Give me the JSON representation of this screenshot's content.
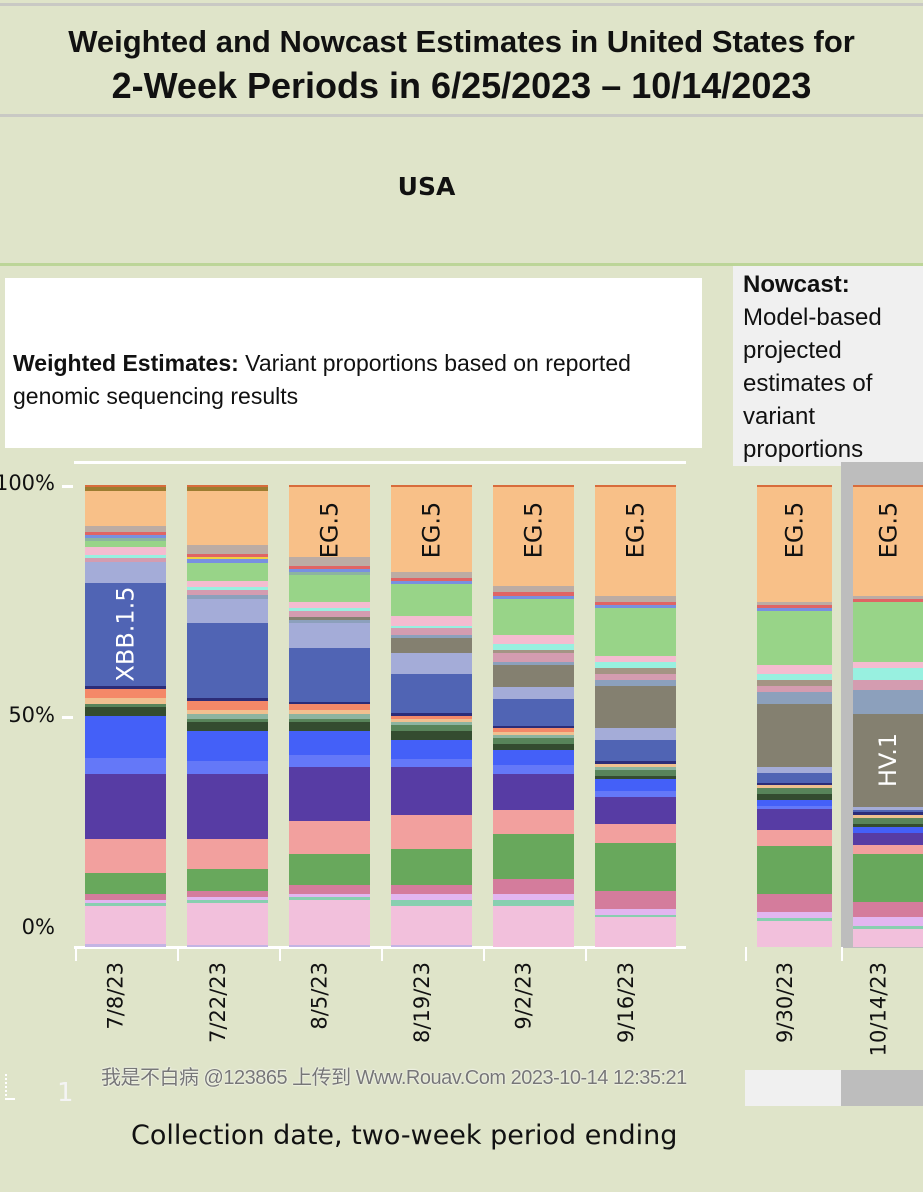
{
  "header": {
    "title_line1": "Weighted and Nowcast Estimates in United States for",
    "title_line2": "2-Week Periods in 6/25/2023 – 10/14/2023",
    "region": "USA"
  },
  "weighted_box": {
    "bold": "Weighted Estimates:",
    "text1": " Variant proportions based on reported",
    "text2": "genomic sequencing results"
  },
  "nowcast_box": {
    "bold": "Nowcast:",
    "lines": [
      "Model-based",
      "projected",
      "estimates of",
      "variant",
      "proportions"
    ]
  },
  "footer": {
    "watermark": "我是不白病 @123865 上传到 Www.Rouav.Com 2023-10-14 12:35:21",
    "page_number": "1"
  },
  "chart_data": {
    "type": "bar",
    "stacked": true,
    "xlabel": "Collection date, two-week period ending",
    "ylabel": "",
    "ylim": [
      0,
      100
    ],
    "yticks": [
      "100%",
      "50%",
      "0%"
    ],
    "categories": [
      "7/8/23",
      "7/22/23",
      "8/5/23",
      "8/19/23",
      "9/2/23",
      "9/16/23",
      "9/30/23",
      "10/14/23"
    ],
    "groups": {
      "weighted": [
        0,
        1,
        2,
        3,
        4,
        5
      ],
      "nowcast": [
        6,
        7
      ]
    },
    "colors": {
      "lavender": "#c4b4e4",
      "pink": "#f2c0dc",
      "teal": "#88cfb0",
      "lilac": "#e2b6f0",
      "mauve": "#d47c9c",
      "green": "#68a85c",
      "salmon": "#f2a09e",
      "purple": "#573ca4",
      "lightblue": "#6478f8",
      "blue": "#4460f8",
      "darkgreen": "#344c30",
      "greenmid": "#58845a",
      "tealgray": "#8cb4a0",
      "tan": "#f0c090",
      "orange2": "#f48868",
      "navy": "#2c2c78",
      "xbb": "#5064b4",
      "periwinkle": "#a4acd8",
      "graybl": "#8ca0bc",
      "gray": "#848070",
      "mauve2": "#d49cb0",
      "graybrown": "#a49484",
      "teal2": "#98f0e0",
      "pink2": "#f4bcd0",
      "lightgreen": "#98d488",
      "blue2": "#7890e0",
      "yellow": "#f0d040",
      "red": "#e06464",
      "tan2": "#bcaca4",
      "eg5": "#f8c088",
      "olive": "#9c7c30",
      "redorange": "#d86c3c"
    },
    "bars": [
      {
        "segments": [
          [
            "lavender",
            0.7
          ],
          [
            "pink",
            8.2
          ],
          [
            "teal",
            0.7
          ],
          [
            "lilac",
            0.7
          ],
          [
            "mauve",
            1.3
          ],
          [
            "green",
            4.6
          ],
          [
            "salmon",
            7.2
          ],
          [
            "purple",
            14.2
          ],
          [
            "lightblue",
            3.3
          ],
          [
            "blue",
            9.2
          ],
          [
            "darkgreen",
            2.0
          ],
          [
            "greenmid",
            0.6
          ],
          [
            "tan",
            1.2
          ],
          [
            "orange2",
            2.0
          ],
          [
            "navy",
            0.6
          ],
          [
            "xbb",
            22.3,
            "XBB.1.5"
          ],
          [
            "periwinkle",
            4.6
          ],
          [
            "mauve2",
            0.8
          ],
          [
            "teal2",
            0.7
          ],
          [
            "pink2",
            1.6
          ],
          [
            "lightgreen",
            1.4
          ],
          [
            "tealgray",
            0.7
          ],
          [
            "blue2",
            0.5
          ],
          [
            "red",
            0.7
          ],
          [
            "tan2",
            1.3
          ],
          [
            "eg5",
            7.7
          ],
          [
            "olive",
            0.7
          ],
          [
            "redorange",
            0.4
          ]
        ]
      },
      {
        "segments": [
          [
            "lavender",
            0.6
          ],
          [
            "pink",
            9.0
          ],
          [
            "teal",
            0.7
          ],
          [
            "lilac",
            0.7
          ],
          [
            "mauve",
            1.3
          ],
          [
            "green",
            4.6
          ],
          [
            "salmon",
            6.5
          ],
          [
            "purple",
            14.2
          ],
          [
            "lightblue",
            2.7
          ],
          [
            "blue",
            6.5
          ],
          [
            "darkgreen",
            2.0
          ],
          [
            "greenmid",
            0.7
          ],
          [
            "tealgray",
            1.1
          ],
          [
            "tan",
            0.7
          ],
          [
            "orange2",
            2.0
          ],
          [
            "navy",
            0.6
          ],
          [
            "xbb",
            16.3
          ],
          [
            "periwinkle",
            5.3
          ],
          [
            "graybl",
            0.7
          ],
          [
            "mauve2",
            1.2
          ],
          [
            "teal2",
            0.7
          ],
          [
            "pink2",
            1.2
          ],
          [
            "lightgreen",
            4.0
          ],
          [
            "blue2",
            0.7
          ],
          [
            "yellow",
            0.6
          ],
          [
            "red",
            0.6
          ],
          [
            "tan2",
            2.0
          ],
          [
            "eg5",
            11.7
          ],
          [
            "olive",
            0.7
          ],
          [
            "redorange",
            0.4
          ]
        ]
      },
      {
        "segments": [
          [
            "lavender",
            0.6
          ],
          [
            "pink",
            9.7
          ],
          [
            "teal",
            0.7
          ],
          [
            "lilac",
            0.6
          ],
          [
            "mauve",
            2.0
          ],
          [
            "green",
            6.5
          ],
          [
            "salmon",
            7.2
          ],
          [
            "purple",
            11.7
          ],
          [
            "lightblue",
            2.5
          ],
          [
            "blue",
            5.2
          ],
          [
            "darkgreen",
            2.0
          ],
          [
            "greenmid",
            0.7
          ],
          [
            "tealgray",
            1.1
          ],
          [
            "tan",
            0.7
          ],
          [
            "orange2",
            1.3
          ],
          [
            "navy",
            0.6
          ],
          [
            "xbb",
            11.7
          ],
          [
            "periwinkle",
            5.2
          ],
          [
            "graybl",
            0.7
          ],
          [
            "gray",
            0.7
          ],
          [
            "mauve2",
            1.3
          ],
          [
            "teal2",
            0.7
          ],
          [
            "pink2",
            1.2
          ],
          [
            "lightgreen",
            5.9
          ],
          [
            "tealgray",
            0.7
          ],
          [
            "blue2",
            0.6
          ],
          [
            "red",
            0.6
          ],
          [
            "tan2",
            2.0
          ],
          [
            "eg5",
            15.0,
            "EG.5"
          ],
          [
            "redorange",
            0.4
          ]
        ]
      },
      {
        "segments": [
          [
            "lavender",
            0.6
          ],
          [
            "pink",
            8.3
          ],
          [
            "teal",
            1.4
          ],
          [
            "lilac",
            1.3
          ],
          [
            "mauve",
            2.0
          ],
          [
            "green",
            7.8
          ],
          [
            "salmon",
            7.2
          ],
          [
            "purple",
            10.4
          ],
          [
            "lightblue",
            1.8
          ],
          [
            "blue",
            4.0
          ],
          [
            "darkgreen",
            2.0
          ],
          [
            "greenmid",
            1.3
          ],
          [
            "tealgray",
            0.7
          ],
          [
            "tan",
            0.6
          ],
          [
            "orange2",
            0.6
          ],
          [
            "navy",
            0.6
          ],
          [
            "xbb",
            8.5
          ],
          [
            "periwinkle",
            4.6
          ],
          [
            "gray",
            3.3
          ],
          [
            "graybl",
            0.6
          ],
          [
            "mauve2",
            1.4
          ],
          [
            "teal2",
            0.6
          ],
          [
            "pink2",
            2.0
          ],
          [
            "lightgreen",
            7.1
          ],
          [
            "blue2",
            0.6
          ],
          [
            "red",
            0.6
          ],
          [
            "tan2",
            1.3
          ],
          [
            "eg5",
            18.3,
            "EG.5"
          ],
          [
            "redorange",
            0.4
          ]
        ]
      },
      {
        "segments": [
          [
            "pink",
            9.0
          ],
          [
            "teal",
            1.2
          ],
          [
            "lilac",
            1.3
          ],
          [
            "mauve",
            3.3
          ],
          [
            "green",
            9.8
          ],
          [
            "salmon",
            5.2
          ],
          [
            "purple",
            7.9
          ],
          [
            "lightblue",
            1.9
          ],
          [
            "blue",
            3.3
          ],
          [
            "darkgreen",
            1.2
          ],
          [
            "greenmid",
            1.3
          ],
          [
            "tealgray",
            0.7
          ],
          [
            "tan",
            0.7
          ],
          [
            "orange2",
            0.7
          ],
          [
            "navy",
            0.6
          ],
          [
            "xbb",
            5.9
          ],
          [
            "periwinkle",
            2.6
          ],
          [
            "gray",
            4.6
          ],
          [
            "graybl",
            0.7
          ],
          [
            "mauve2",
            2.0
          ],
          [
            "graybrown",
            0.6
          ],
          [
            "teal2",
            1.3
          ],
          [
            "pink2",
            2.0
          ],
          [
            "lightgreen",
            7.8
          ],
          [
            "blue2",
            0.7
          ],
          [
            "red",
            0.7
          ],
          [
            "tan2",
            1.3
          ],
          [
            "eg5",
            21.5,
            "EG.5"
          ],
          [
            "redorange",
            0.4
          ]
        ]
      },
      {
        "segments": [
          [
            "pink",
            6.5
          ],
          [
            "teal",
            0.6
          ],
          [
            "lilac",
            1.3
          ],
          [
            "mauve",
            3.9
          ],
          [
            "green",
            10.4
          ],
          [
            "salmon",
            3.9
          ],
          [
            "purple",
            5.9
          ],
          [
            "lightblue",
            1.3
          ],
          [
            "blue",
            2.7
          ],
          [
            "darkgreen",
            0.6
          ],
          [
            "greenmid",
            1.3
          ],
          [
            "tealgray",
            0.7
          ],
          [
            "tan",
            0.6
          ],
          [
            "navy",
            0.6
          ],
          [
            "xbb",
            4.6
          ],
          [
            "periwinkle",
            2.6
          ],
          [
            "gray",
            9.1
          ],
          [
            "graybl",
            1.3
          ],
          [
            "mauve2",
            1.3
          ],
          [
            "graybrown",
            1.3
          ],
          [
            "teal2",
            1.3
          ],
          [
            "pink2",
            1.3
          ],
          [
            "lightgreen",
            10.4
          ],
          [
            "blue2",
            0.6
          ],
          [
            "red",
            0.6
          ],
          [
            "tan2",
            1.3
          ],
          [
            "eg5",
            23.5,
            "EG.5"
          ],
          [
            "redorange",
            0.4
          ]
        ]
      },
      {
        "segments": [
          [
            "pink",
            5.8
          ],
          [
            "teal",
            0.6
          ],
          [
            "lilac",
            1.3
          ],
          [
            "mauve",
            3.9
          ],
          [
            "green",
            10.4
          ],
          [
            "salmon",
            3.3
          ],
          [
            "purple",
            4.6
          ],
          [
            "lightblue",
            0.6
          ],
          [
            "blue",
            1.3
          ],
          [
            "darkgreen",
            1.3
          ],
          [
            "greenmid",
            1.3
          ],
          [
            "tan",
            0.6
          ],
          [
            "navy",
            0.6
          ],
          [
            "xbb",
            2.0
          ],
          [
            "periwinkle",
            1.3
          ],
          [
            "gray",
            13.6
          ],
          [
            "graybl",
            2.6
          ],
          [
            "mauve2",
            1.3
          ],
          [
            "graybrown",
            1.3
          ],
          [
            "teal2",
            1.3
          ],
          [
            "pink2",
            2.0
          ],
          [
            "lightgreen",
            11.7
          ],
          [
            "blue2",
            0.6
          ],
          [
            "red",
            0.6
          ],
          [
            "tan2",
            0.6
          ],
          [
            "eg5",
            24.8,
            "EG.5"
          ],
          [
            "redorange",
            0.4
          ]
        ]
      },
      {
        "segments": [
          [
            "pink",
            4.0
          ],
          [
            "teal",
            0.6
          ],
          [
            "lilac",
            1.9
          ],
          [
            "mauve",
            3.3
          ],
          [
            "green",
            10.3
          ],
          [
            "salmon",
            2.0
          ],
          [
            "purple",
            2.7
          ],
          [
            "blue",
            1.3
          ],
          [
            "darkgreen",
            0.6
          ],
          [
            "greenmid",
            1.3
          ],
          [
            "tan",
            0.6
          ],
          [
            "navy",
            0.6
          ],
          [
            "xbb",
            0.6
          ],
          [
            "periwinkle",
            0.6
          ],
          [
            "gray",
            20.0,
            "HV.1"
          ],
          [
            "graybl",
            5.3
          ],
          [
            "mauve2",
            2.0
          ],
          [
            "teal2",
            2.6
          ],
          [
            "pink2",
            1.3
          ],
          [
            "lightgreen",
            13.1
          ],
          [
            "red",
            0.6
          ],
          [
            "tan2",
            0.6
          ],
          [
            "eg5",
            23.5,
            "EG.5"
          ],
          [
            "redorange",
            0.4
          ]
        ]
      }
    ]
  }
}
